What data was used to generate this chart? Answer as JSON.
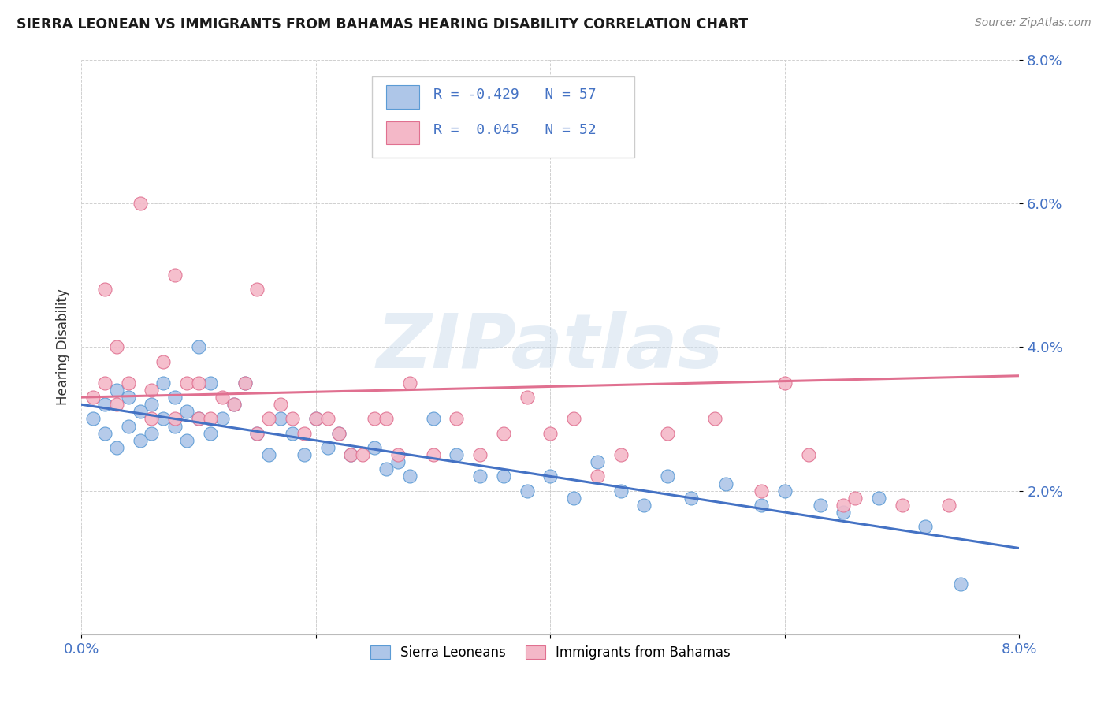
{
  "title": "SIERRA LEONEAN VS IMMIGRANTS FROM BAHAMAS HEARING DISABILITY CORRELATION CHART",
  "source": "Source: ZipAtlas.com",
  "ylabel": "Hearing Disability",
  "legend_label1": "Sierra Leoneans",
  "legend_label2": "Immigrants from Bahamas",
  "r1": "-0.429",
  "n1": "57",
  "r2": "0.045",
  "n2": "52",
  "color_blue_fill": "#aec6e8",
  "color_blue_edge": "#5b9bd5",
  "color_pink_fill": "#f4b8c8",
  "color_pink_edge": "#e07090",
  "color_blue_line": "#4472c4",
  "color_pink_line": "#e07090",
  "color_text_blue": "#4472c4",
  "color_text_dark": "#333333",
  "color_grid": "#d0d0d0",
  "color_legend_border": "#cccccc",
  "xlim": [
    0.0,
    0.08
  ],
  "ylim": [
    0.0,
    0.08
  ],
  "yticks": [
    0.02,
    0.04,
    0.06,
    0.08
  ],
  "ytick_labels": [
    "2.0%",
    "4.0%",
    "6.0%",
    "8.0%"
  ],
  "xticks": [
    0.0,
    0.02,
    0.04,
    0.06,
    0.08
  ],
  "xtick_labels": [
    "0.0%",
    "",
    "",
    "",
    "8.0%"
  ],
  "blue_line_x0": 0.0,
  "blue_line_y0": 0.032,
  "blue_line_x1": 0.08,
  "blue_line_y1": 0.012,
  "pink_line_x0": 0.0,
  "pink_line_y0": 0.033,
  "pink_line_x1": 0.08,
  "pink_line_y1": 0.036,
  "blue_scatter_x": [
    0.001,
    0.002,
    0.002,
    0.003,
    0.003,
    0.004,
    0.004,
    0.005,
    0.005,
    0.006,
    0.006,
    0.007,
    0.007,
    0.008,
    0.008,
    0.009,
    0.009,
    0.01,
    0.01,
    0.011,
    0.011,
    0.012,
    0.013,
    0.014,
    0.015,
    0.016,
    0.017,
    0.018,
    0.019,
    0.02,
    0.021,
    0.022,
    0.023,
    0.025,
    0.026,
    0.027,
    0.028,
    0.03,
    0.032,
    0.034,
    0.036,
    0.038,
    0.04,
    0.042,
    0.044,
    0.046,
    0.048,
    0.05,
    0.052,
    0.055,
    0.058,
    0.06,
    0.063,
    0.065,
    0.068,
    0.072,
    0.075
  ],
  "blue_scatter_y": [
    0.03,
    0.028,
    0.032,
    0.026,
    0.034,
    0.029,
    0.033,
    0.027,
    0.031,
    0.028,
    0.032,
    0.03,
    0.035,
    0.029,
    0.033,
    0.027,
    0.031,
    0.04,
    0.03,
    0.035,
    0.028,
    0.03,
    0.032,
    0.035,
    0.028,
    0.025,
    0.03,
    0.028,
    0.025,
    0.03,
    0.026,
    0.028,
    0.025,
    0.026,
    0.023,
    0.024,
    0.022,
    0.03,
    0.025,
    0.022,
    0.022,
    0.02,
    0.022,
    0.019,
    0.024,
    0.02,
    0.018,
    0.022,
    0.019,
    0.021,
    0.018,
    0.02,
    0.018,
    0.017,
    0.019,
    0.015,
    0.007
  ],
  "pink_scatter_x": [
    0.001,
    0.002,
    0.002,
    0.003,
    0.003,
    0.004,
    0.005,
    0.006,
    0.006,
    0.007,
    0.008,
    0.008,
    0.009,
    0.01,
    0.01,
    0.011,
    0.012,
    0.013,
    0.014,
    0.015,
    0.015,
    0.016,
    0.017,
    0.018,
    0.019,
    0.02,
    0.021,
    0.022,
    0.023,
    0.024,
    0.025,
    0.026,
    0.027,
    0.028,
    0.03,
    0.032,
    0.034,
    0.036,
    0.038,
    0.04,
    0.042,
    0.044,
    0.046,
    0.05,
    0.054,
    0.058,
    0.062,
    0.066,
    0.07,
    0.074,
    0.06,
    0.065
  ],
  "pink_scatter_y": [
    0.033,
    0.035,
    0.048,
    0.04,
    0.032,
    0.035,
    0.06,
    0.03,
    0.034,
    0.038,
    0.05,
    0.03,
    0.035,
    0.03,
    0.035,
    0.03,
    0.033,
    0.032,
    0.035,
    0.028,
    0.048,
    0.03,
    0.032,
    0.03,
    0.028,
    0.03,
    0.03,
    0.028,
    0.025,
    0.025,
    0.03,
    0.03,
    0.025,
    0.035,
    0.025,
    0.03,
    0.025,
    0.028,
    0.033,
    0.028,
    0.03,
    0.022,
    0.025,
    0.028,
    0.03,
    0.02,
    0.025,
    0.019,
    0.018,
    0.018,
    0.035,
    0.018
  ],
  "watermark": "ZIPatlas",
  "background_color": "#ffffff"
}
